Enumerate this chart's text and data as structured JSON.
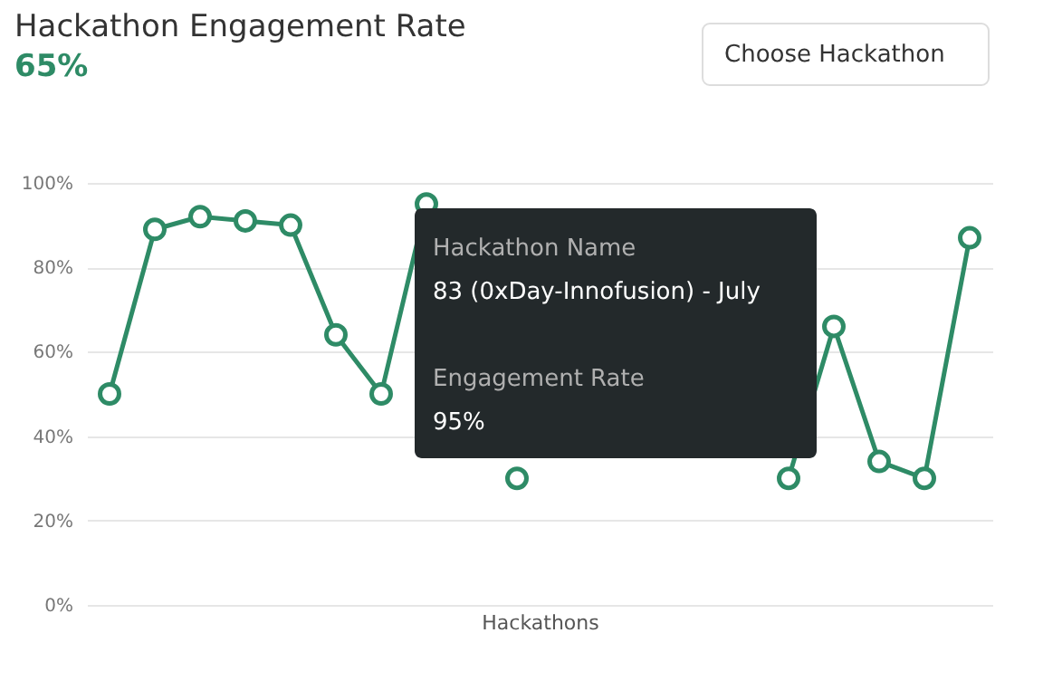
{
  "chart_data": {
    "type": "line",
    "title": "Hackathon Engagement Rate",
    "subtitle": "65%",
    "xlabel": "Hackathons",
    "categories": [
      null,
      null,
      null,
      null,
      null,
      null,
      null,
      null,
      null,
      null,
      null,
      null,
      null,
      null,
      null,
      null,
      null,
      null,
      null,
      null
    ],
    "series": [
      {
        "color": "#2e8b66",
        "values": [
          50,
          89,
          92,
          91,
          90,
          64,
          50,
          95,
          null,
          30,
          null,
          null,
          null,
          null,
          null,
          30,
          66,
          34,
          30,
          87
        ]
      }
    ],
    "ylim": [
      0,
      100
    ],
    "yticks": [
      {
        "value": 0,
        "label": "0%"
      },
      {
        "value": 20,
        "label": "20%"
      },
      {
        "value": 40,
        "label": "40%"
      },
      {
        "value": 60,
        "label": "60%"
      },
      {
        "value": 80,
        "label": "80%"
      },
      {
        "value": 100,
        "label": "100%"
      }
    ],
    "grid": "y",
    "marker": "circle",
    "line_style": "solid",
    "annotations": [
      "Choose Hackathon",
      "Hackathon Name",
      "83 (0xDay-Innofusion) - July",
      "Engagement Rate",
      "95%"
    ]
  }
}
